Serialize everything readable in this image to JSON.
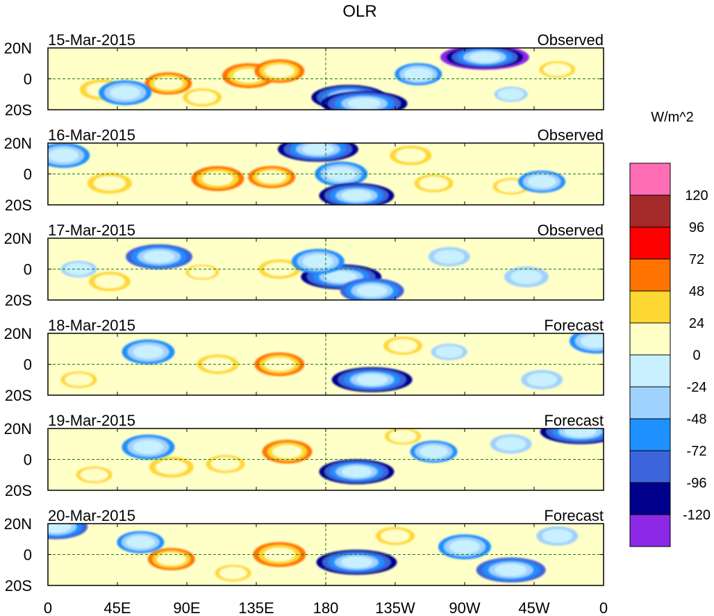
{
  "chart_data": {
    "type": "heatmap",
    "title": "OLR",
    "units": "W/m^2",
    "x_ticks": [
      "0",
      "45E",
      "90E",
      "135E",
      "180",
      "135W",
      "90W",
      "45W",
      "0"
    ],
    "y_ticks": [
      "20N",
      "0",
      "20S"
    ],
    "colorbar": {
      "labels": [
        "120",
        "96",
        "72",
        "48",
        "24",
        "0",
        "-24",
        "-48",
        "-72",
        "-96",
        "-120"
      ],
      "colors": [
        "#ff6eb4",
        "#a52a2a",
        "#ff0000",
        "#ff7400",
        "#ffd732",
        "#ffffc8",
        "#c8f0ff",
        "#a0d2ff",
        "#1e90ff",
        "#3c64dc",
        "#00008c",
        "#8c28e6"
      ]
    },
    "panels": [
      {
        "date": "15-Mar-2015",
        "label": "Observed"
      },
      {
        "date": "16-Mar-2015",
        "label": "Observed"
      },
      {
        "date": "17-Mar-2015",
        "label": "Observed"
      },
      {
        "date": "18-Mar-2015",
        "label": "Forecast"
      },
      {
        "date": "19-Mar-2015",
        "label": "Forecast"
      },
      {
        "date": "20-Mar-2015",
        "label": "Forecast"
      }
    ],
    "anomalies": [
      [
        {
          "lon": 130,
          "lat": 2,
          "v": 60
        },
        {
          "lon": 78,
          "lat": -3,
          "v": 50
        },
        {
          "lon": 150,
          "lat": 5,
          "v": 55
        },
        {
          "lon": 35,
          "lat": -7,
          "v": 45
        },
        {
          "lon": 195,
          "lat": -12,
          "v": -100
        },
        {
          "lon": 205,
          "lat": -16,
          "v": -120
        },
        {
          "lon": 283,
          "lat": 14,
          "v": -125
        },
        {
          "lon": 240,
          "lat": 3,
          "v": -50
        },
        {
          "lon": 50,
          "lat": -9,
          "v": -60
        },
        {
          "lon": 330,
          "lat": 6,
          "v": 30
        },
        {
          "lon": 100,
          "lat": -12,
          "v": 35
        },
        {
          "lon": 300,
          "lat": -10,
          "v": -25
        }
      ],
      [
        {
          "lon": 110,
          "lat": -3,
          "v": 60
        },
        {
          "lon": 40,
          "lat": -6,
          "v": 45
        },
        {
          "lon": 190,
          "lat": 0,
          "v": -60
        },
        {
          "lon": 200,
          "lat": -14,
          "v": -100
        },
        {
          "lon": 175,
          "lat": 16,
          "v": -110
        },
        {
          "lon": 145,
          "lat": -2,
          "v": 50
        },
        {
          "lon": 235,
          "lat": 12,
          "v": 40
        },
        {
          "lon": 300,
          "lat": -8,
          "v": 30
        },
        {
          "lon": 10,
          "lat": 12,
          "v": -60
        },
        {
          "lon": 320,
          "lat": -5,
          "v": -50
        },
        {
          "lon": 250,
          "lat": -6,
          "v": 35
        }
      ],
      [
        {
          "lon": 40,
          "lat": -8,
          "v": 40
        },
        {
          "lon": 72,
          "lat": 8,
          "v": -85
        },
        {
          "lon": 190,
          "lat": -5,
          "v": -110
        },
        {
          "lon": 210,
          "lat": -14,
          "v": -80
        },
        {
          "lon": 150,
          "lat": 0,
          "v": 40
        },
        {
          "lon": 175,
          "lat": 5,
          "v": -60
        },
        {
          "lon": 310,
          "lat": -5,
          "v": -45
        },
        {
          "lon": 260,
          "lat": 8,
          "v": -40
        },
        {
          "lon": 20,
          "lat": 0,
          "v": -30
        },
        {
          "lon": 100,
          "lat": -2,
          "v": 25
        }
      ],
      [
        {
          "lon": 110,
          "lat": 0,
          "v": 40
        },
        {
          "lon": 150,
          "lat": 0,
          "v": 55
        },
        {
          "lon": 210,
          "lat": -10,
          "v": -110
        },
        {
          "lon": 65,
          "lat": 8,
          "v": -60
        },
        {
          "lon": 320,
          "lat": -10,
          "v": -40
        },
        {
          "lon": 260,
          "lat": 8,
          "v": -30
        },
        {
          "lon": 230,
          "lat": 12,
          "v": 35
        },
        {
          "lon": 355,
          "lat": 15,
          "v": -60
        },
        {
          "lon": 20,
          "lat": -10,
          "v": 30
        }
      ],
      [
        {
          "lon": 155,
          "lat": 5,
          "v": 55
        },
        {
          "lon": 200,
          "lat": -8,
          "v": -100
        },
        {
          "lon": 115,
          "lat": -3,
          "v": 35
        },
        {
          "lon": 80,
          "lat": -5,
          "v": 45
        },
        {
          "lon": 65,
          "lat": 8,
          "v": -60
        },
        {
          "lon": 250,
          "lat": 5,
          "v": -50
        },
        {
          "lon": 300,
          "lat": 10,
          "v": -40
        },
        {
          "lon": 345,
          "lat": 18,
          "v": -110
        },
        {
          "lon": 230,
          "lat": 15,
          "v": 30
        },
        {
          "lon": 30,
          "lat": -10,
          "v": 30
        }
      ],
      [
        {
          "lon": 150,
          "lat": 0,
          "v": 60
        },
        {
          "lon": 200,
          "lat": -5,
          "v": -110
        },
        {
          "lon": 80,
          "lat": -3,
          "v": 50
        },
        {
          "lon": 300,
          "lat": -10,
          "v": -90
        },
        {
          "lon": 270,
          "lat": 5,
          "v": -60
        },
        {
          "lon": 225,
          "lat": 12,
          "v": 35
        },
        {
          "lon": 330,
          "lat": 12,
          "v": -40
        },
        {
          "lon": 60,
          "lat": 8,
          "v": -50
        },
        {
          "lon": 5,
          "lat": 18,
          "v": -80
        },
        {
          "lon": 120,
          "lat": -12,
          "v": 30
        }
      ]
    ]
  }
}
